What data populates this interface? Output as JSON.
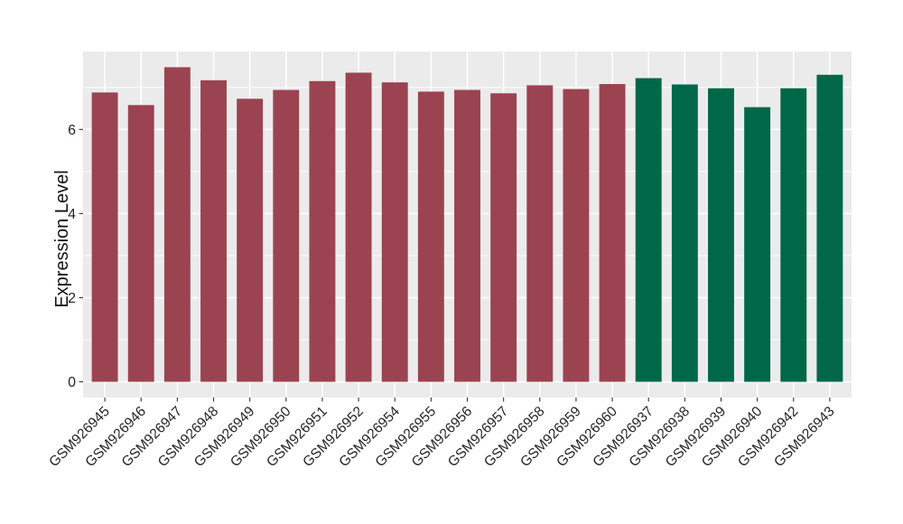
{
  "chart_data": {
    "type": "bar",
    "title": "",
    "xlabel": "",
    "ylabel": "Expression Level",
    "categories": [
      "GSM926945",
      "GSM926946",
      "GSM926947",
      "GSM926948",
      "GSM926949",
      "GSM926950",
      "GSM926951",
      "GSM926952",
      "GSM926954",
      "GSM926955",
      "GSM926956",
      "GSM926957",
      "GSM926958",
      "GSM926959",
      "GSM926960",
      "GSM926937",
      "GSM926938",
      "GSM926939",
      "GSM926940",
      "GSM926942",
      "GSM926943"
    ],
    "values": [
      6.88,
      6.58,
      7.48,
      7.17,
      6.73,
      6.94,
      7.15,
      7.35,
      7.12,
      6.9,
      6.94,
      6.86,
      7.05,
      6.96,
      7.08,
      7.22,
      7.07,
      6.98,
      6.53,
      6.98,
      7.3
    ],
    "bar_colors": [
      "#9B4351",
      "#9B4351",
      "#9B4351",
      "#9B4351",
      "#9B4351",
      "#9B4351",
      "#9B4351",
      "#9B4351",
      "#9B4351",
      "#9B4351",
      "#9B4351",
      "#9B4351",
      "#9B4351",
      "#9B4351",
      "#9B4351",
      "#006848",
      "#006848",
      "#006848",
      "#006848",
      "#006848",
      "#006848"
    ],
    "color_groups": [
      {
        "color": "#9B4351",
        "count": 15
      },
      {
        "color": "#006848",
        "count": 6
      }
    ],
    "ylim": [
      0,
      7.85
    ],
    "yticks_major": [
      0,
      2,
      4,
      6
    ],
    "yticks_minor": [
      1,
      3,
      5,
      7
    ],
    "x_tick_rotation": -45,
    "grid": true,
    "legend": "none",
    "style": {
      "panel_background": "#EBEBEB",
      "gridline_major_color": "#FFFFFF",
      "gridline_minor_color": "#FFFFFF",
      "tick_mark_color": "#333333",
      "tick_label_color": "#262626",
      "axis_title_color": "#111111",
      "figure_background": "#FFFFFF"
    }
  }
}
